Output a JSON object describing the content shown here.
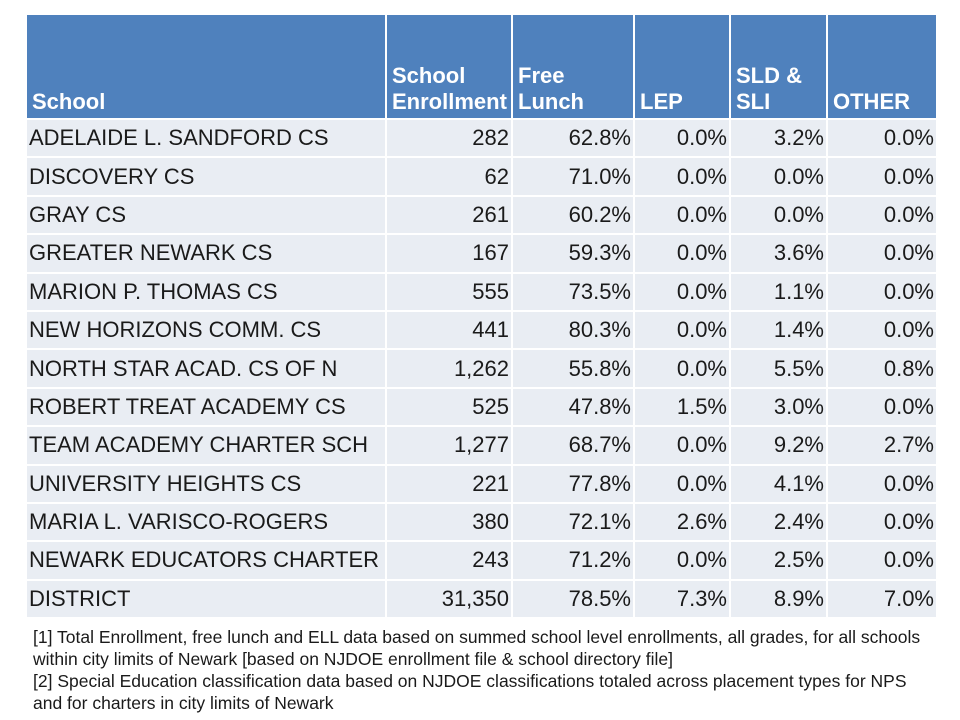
{
  "table": {
    "columns": [
      {
        "key": "school",
        "label": "School"
      },
      {
        "key": "enrollment",
        "label": "School\nEnrollment"
      },
      {
        "key": "free_lunch",
        "label": "Free\nLunch"
      },
      {
        "key": "lep",
        "label": "LEP"
      },
      {
        "key": "sld_sli",
        "label": "SLD &\nSLI"
      },
      {
        "key": "other",
        "label": "OTHER"
      }
    ],
    "rows": [
      [
        "ADELAIDE L. SANDFORD CS",
        "282",
        "62.8%",
        "0.0%",
        "3.2%",
        "0.0%"
      ],
      [
        "DISCOVERY CS",
        "62",
        "71.0%",
        "0.0%",
        "0.0%",
        "0.0%"
      ],
      [
        "GRAY CS",
        "261",
        "60.2%",
        "0.0%",
        "0.0%",
        "0.0%"
      ],
      [
        "GREATER NEWARK CS",
        "167",
        "59.3%",
        "0.0%",
        "3.6%",
        "0.0%"
      ],
      [
        "MARION P. THOMAS CS",
        "555",
        "73.5%",
        "0.0%",
        "1.1%",
        "0.0%"
      ],
      [
        "NEW HORIZONS COMM. CS",
        "441",
        "80.3%",
        "0.0%",
        "1.4%",
        "0.0%"
      ],
      [
        "NORTH STAR ACAD. CS OF N",
        "1,262",
        "55.8%",
        "0.0%",
        "5.5%",
        "0.8%"
      ],
      [
        "ROBERT TREAT ACADEMY CS",
        "525",
        "47.8%",
        "1.5%",
        "3.0%",
        "0.0%"
      ],
      [
        "TEAM ACADEMY CHARTER SCH",
        "1,277",
        "68.7%",
        "0.0%",
        "9.2%",
        "2.7%"
      ],
      [
        "UNIVERSITY HEIGHTS CS",
        "221",
        "77.8%",
        "0.0%",
        "4.1%",
        "0.0%"
      ],
      [
        "MARIA L. VARISCO-ROGERS",
        "380",
        "72.1%",
        "2.6%",
        "2.4%",
        "0.0%"
      ],
      [
        "NEWARK EDUCATORS CHARTER",
        "243",
        "71.2%",
        "0.0%",
        "2.5%",
        "0.0%"
      ],
      [
        "DISTRICT",
        "31,350",
        "78.5%",
        "7.3%",
        "8.9%",
        "7.0%"
      ]
    ]
  },
  "footnotes": [
    "[1] Total Enrollment, free lunch and ELL data based on summed school level enrollments, all grades, for all schools within city limits of Newark [based on NJDOE enrollment file & school directory file]",
    "[2] Special Education classification data based on NJDOE classifications totaled across placement types for NPS and for charters in city limits of Newark"
  ],
  "colors": {
    "header_bg": "#4F81BD",
    "header_text": "#FFFFFF",
    "row_bg": "#E9EDF3",
    "body_text": "#1A1A1A",
    "divider": "#FFFFFF",
    "page_bg": "#FFFFFF"
  }
}
